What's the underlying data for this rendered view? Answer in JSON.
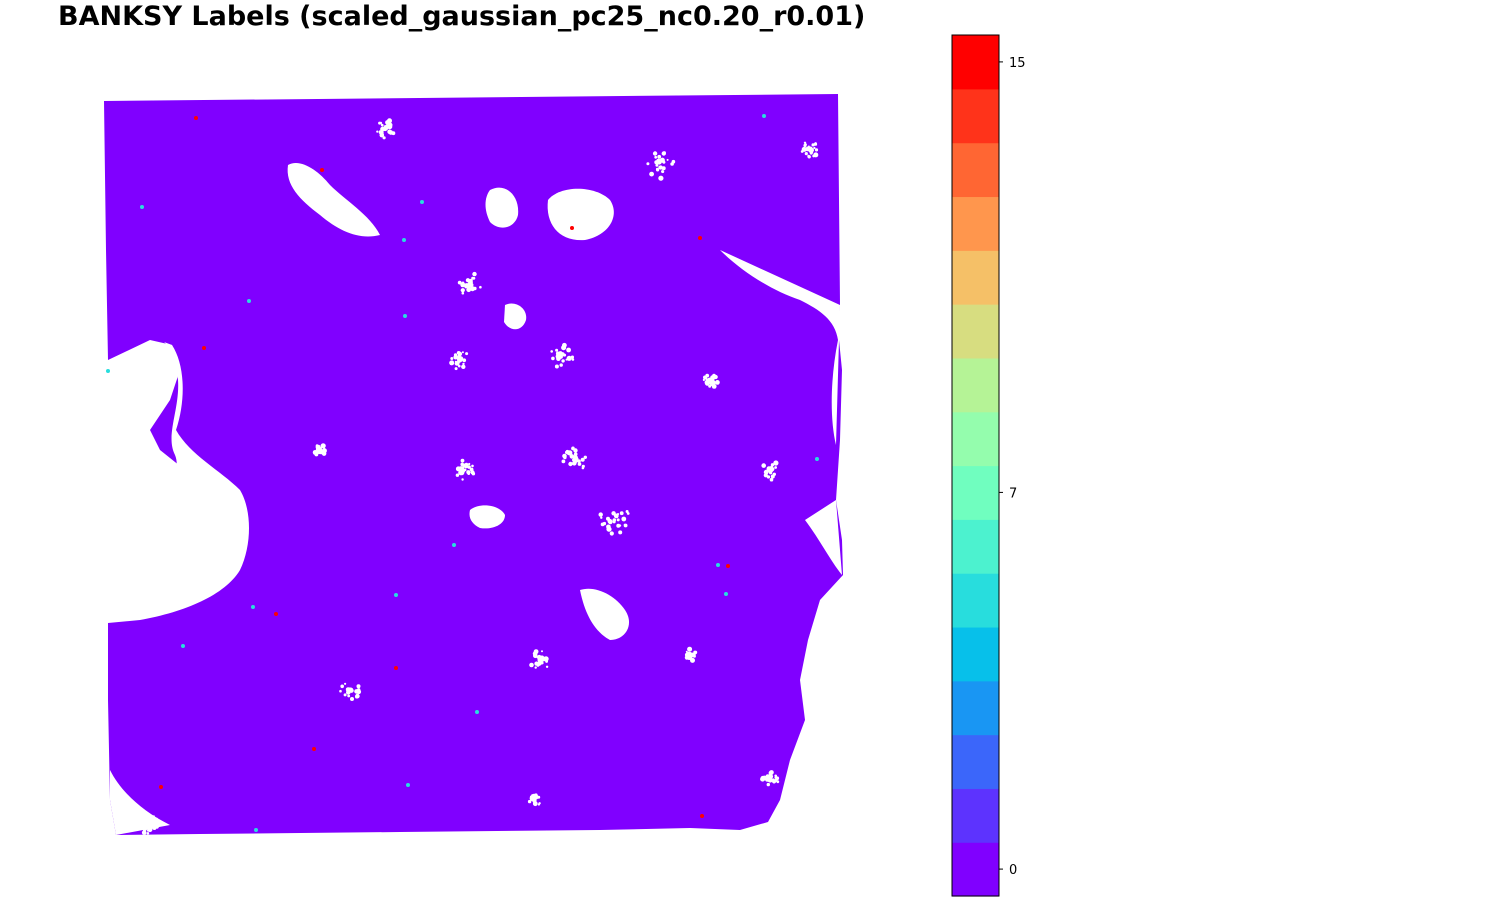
{
  "chart_data": {
    "type": "scatter",
    "title": "BANKSY Labels (scaled_gaussian_pc25_nc0.20_r0.01)",
    "colorbar": {
      "label": "",
      "min": 0,
      "max": 15,
      "num_levels": 16,
      "ticks": [
        0,
        7,
        15
      ],
      "tick_labels": [
        "0",
        "7",
        "15"
      ],
      "colormap": "rainbow",
      "colors": [
        "#8000ff",
        "#5d33fe",
        "#3b66fa",
        "#1996f3",
        "#07c0ea",
        "#28dddd",
        "#4cf2cf",
        "#70febf",
        "#94fdad",
        "#b5f396",
        "#d7dd80",
        "#f5c067",
        "#ff964d",
        "#ff6633",
        "#ff331a",
        "#ff0000"
      ]
    },
    "axes_visible": false,
    "background_class": 0,
    "background_color": "#8000ff",
    "sparse_points": [
      {
        "label": 5,
        "color": "#28dddd"
      },
      {
        "label": 15,
        "color": "#ff0000"
      }
    ]
  }
}
